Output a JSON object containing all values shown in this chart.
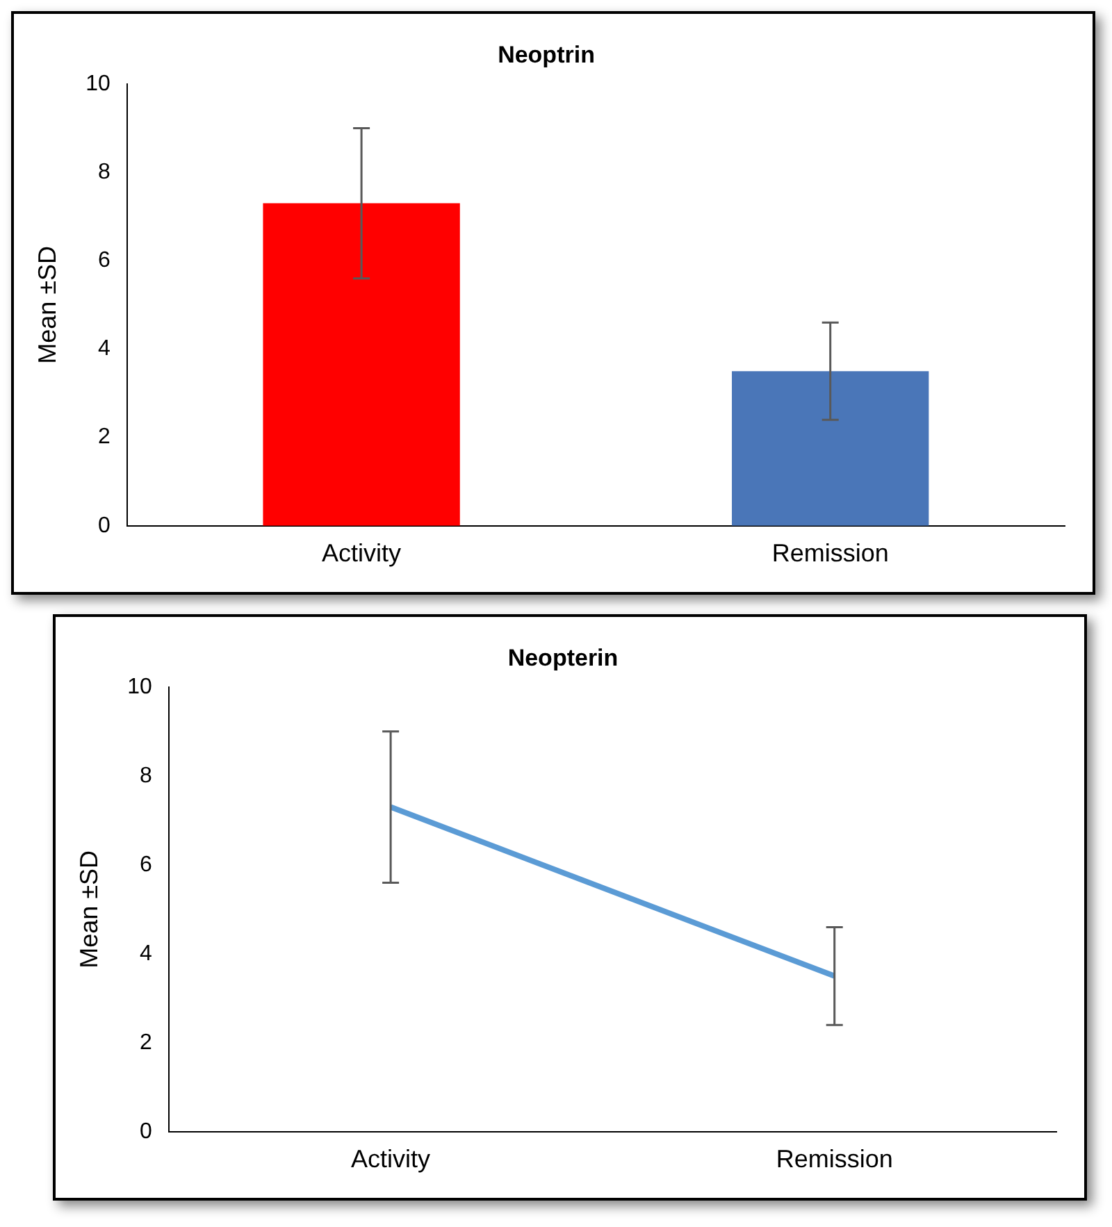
{
  "chart_data": [
    {
      "type": "bar",
      "title": "Neoptrin",
      "ylabel": "Mean ±SD",
      "categories": [
        "Activity",
        "Remission"
      ],
      "values": [
        7.3,
        3.5
      ],
      "colors": [
        "#ff0000",
        "#4a76b8"
      ],
      "errors": [
        [
          5.6,
          9.0
        ],
        [
          2.4,
          4.6
        ]
      ],
      "ylim": [
        0,
        10
      ],
      "yticks": [
        0,
        2,
        4,
        6,
        8,
        10
      ]
    },
    {
      "type": "line",
      "title": "Neopterin",
      "ylabel": "Mean ±SD",
      "categories": [
        "Activity",
        "Remission"
      ],
      "values": [
        7.3,
        3.5
      ],
      "color": "#5b9bd5",
      "errors": [
        [
          5.6,
          9.0
        ],
        [
          2.4,
          4.6
        ]
      ],
      "marker": "none",
      "ylim": [
        0,
        10
      ],
      "yticks": [
        0,
        2,
        4,
        6,
        8,
        10
      ]
    }
  ]
}
